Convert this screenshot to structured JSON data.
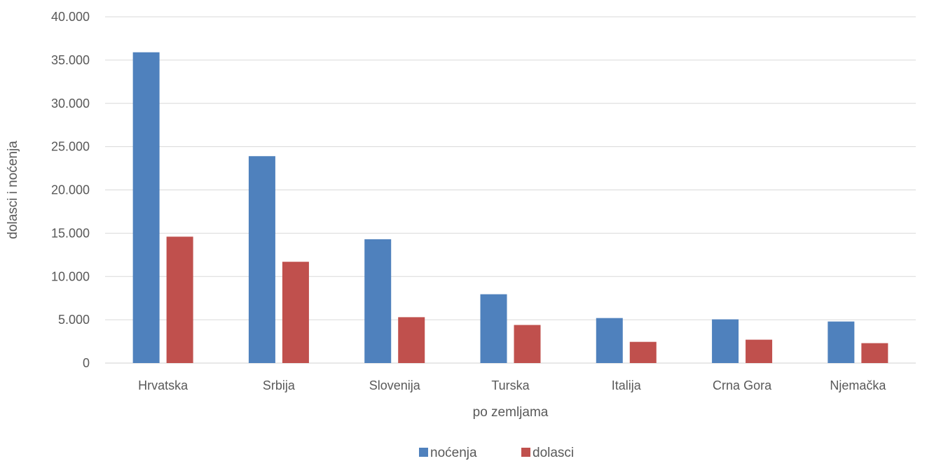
{
  "chart_data": {
    "type": "bar",
    "title": "",
    "xlabel": "po zemljama",
    "ylabel": "dolasci i noćenja",
    "categories": [
      "Hrvatska",
      "Srbija",
      "Slovenija",
      "Turska",
      "Italija",
      "Crna Gora",
      "Njemačka"
    ],
    "series": [
      {
        "name": "noćenja",
        "color": "#4F81BD",
        "values": [
          35900,
          23900,
          14300,
          7950,
          5200,
          5050,
          4800
        ]
      },
      {
        "name": "dolasci",
        "color": "#C0504D",
        "values": [
          14600,
          11700,
          5300,
          4400,
          2450,
          2700,
          2300
        ]
      }
    ],
    "ylim": [
      0,
      40000
    ],
    "yticks": [
      0,
      5000,
      10000,
      15000,
      20000,
      25000,
      30000,
      35000,
      40000
    ],
    "ytick_labels": [
      "0",
      "5.000",
      "10.000",
      "15.000",
      "20.000",
      "25.000",
      "30.000",
      "35.000",
      "40.000"
    ],
    "grid": true,
    "legend_position": "bottom"
  }
}
